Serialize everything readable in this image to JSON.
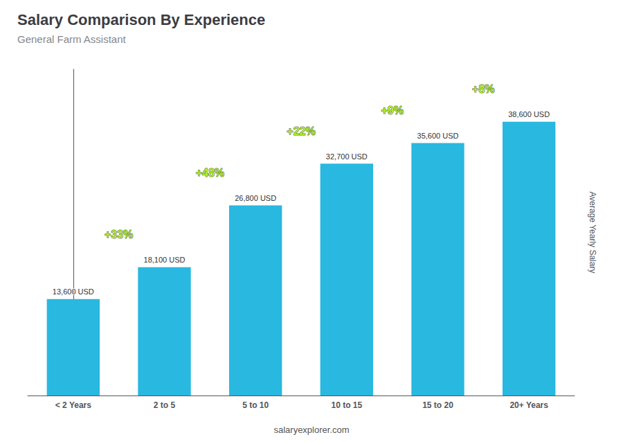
{
  "chart_data": {
    "type": "bar",
    "title": "Salary Comparison By Experience",
    "subtitle": "General Farm Assistant",
    "categories": [
      "< 2 Years",
      "2 to 5",
      "5 to 10",
      "10 to 15",
      "15 to 20",
      "20+ Years"
    ],
    "values": [
      13600,
      18100,
      26800,
      32700,
      35600,
      38600
    ],
    "value_labels": [
      "13,600 USD",
      "18,100 USD",
      "26,800 USD",
      "32,700 USD",
      "35,600 USD",
      "38,600 USD"
    ],
    "data_labels": true,
    "color": "#29b8e0",
    "annotations": [
      {
        "text": "+33%",
        "color": "#aaff00"
      },
      {
        "text": "+48%",
        "color": "#aaff00"
      },
      {
        "text": "+22%",
        "color": "#aaff00"
      },
      {
        "text": "+9%",
        "color": "#aaff00"
      },
      {
        "text": "+8%",
        "color": "#aaff00"
      }
    ],
    "ylabel": "Average Yearly Salary",
    "ylim": [
      0,
      46000
    ],
    "tick_labels": "x",
    "grid": false,
    "footer": "salaryexplorer.com"
  }
}
